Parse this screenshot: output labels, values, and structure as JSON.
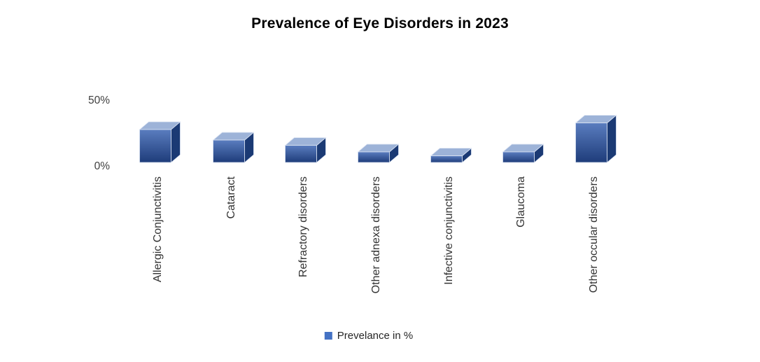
{
  "chart_data": {
    "type": "bar",
    "style": "3d-column",
    "title": "Prevalence of Eye Disorders in 2023",
    "categories": [
      "Allergic Conjunctivitis",
      "Cataract",
      "Refractory disorders",
      "Other adnexa disorders",
      "Infective conjunctivitis",
      "Glaucoma",
      "Other occular disorders"
    ],
    "values": [
      25,
      17,
      13,
      8,
      5,
      8,
      30
    ],
    "unit": "%",
    "xlabel": "",
    "ylabel": "",
    "ylim": [
      0,
      50
    ],
    "y_ticks": [
      {
        "label": "0%",
        "value": 0
      },
      {
        "label": "50%",
        "value": 50
      }
    ],
    "grid": false,
    "legend": {
      "label": "Prevelance in %",
      "position": "bottom"
    },
    "colors": {
      "bar_front_top": "#5a7dbf",
      "bar_front_bottom": "#1e3c7a",
      "bar_top_face": "#9db3d8",
      "bar_side_face": "#1b3a74",
      "edge": "#dde5f3",
      "legend_swatch": "#4472c4",
      "axis_text": "#3f3f3f",
      "category_text": "#333333"
    }
  }
}
